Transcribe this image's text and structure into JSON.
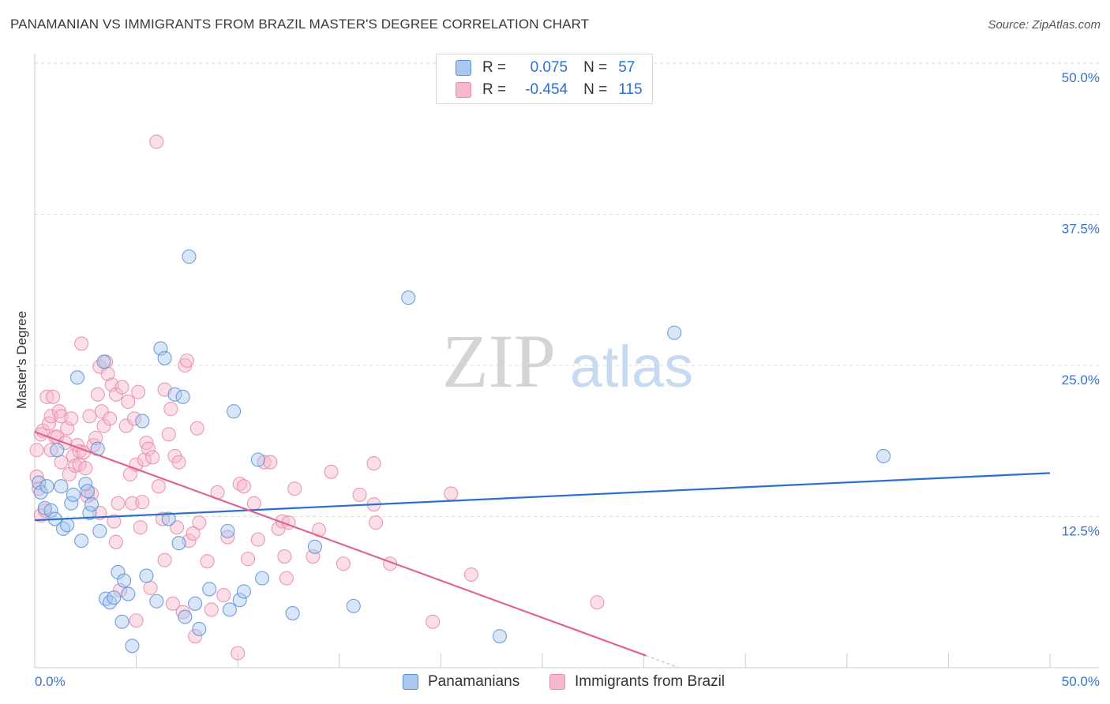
{
  "title": "PANAMANIAN VS IMMIGRANTS FROM BRAZIL MASTER'S DEGREE CORRELATION CHART",
  "source": "Source: ZipAtlas.com",
  "watermark": {
    "zip": "ZIP",
    "atlas": "atlas"
  },
  "legend": {
    "r_label": "R =",
    "n_label": "N =",
    "series": [
      {
        "name": "Panamanians",
        "r": "0.075",
        "n": "57"
      },
      {
        "name": "Immigrants from Brazil",
        "r": "-0.454",
        "n": "115"
      }
    ]
  },
  "colors": {
    "blue_fill": "#a9c8f0",
    "blue_stroke": "#5a8fd6",
    "blue_line": "#2a6fcf",
    "pink_fill": "#f6b9cc",
    "pink_stroke": "#e58aa8",
    "pink_line": "#e0628e",
    "axis_text": "#3a73cc",
    "grid": "#dddddd"
  },
  "chart_data": {
    "type": "scatter",
    "title": "PANAMANIAN VS IMMIGRANTS FROM BRAZIL MASTER'S DEGREE CORRELATION CHART",
    "xlabel": "",
    "ylabel": "Master's Degree",
    "xlim": [
      0,
      50
    ],
    "ylim": [
      0,
      50
    ],
    "x_tick_labels": [
      "0.0%",
      "50.0%"
    ],
    "y_ticks": [
      {
        "value": 50,
        "label": "50.0%"
      },
      {
        "value": 37.5,
        "label": "37.5%"
      },
      {
        "value": 25,
        "label": "25.0%"
      },
      {
        "value": 12.5,
        "label": "12.5%"
      }
    ],
    "series": [
      {
        "name": "Panamanians",
        "color": "blue",
        "trend": {
          "x0": 0,
          "y0": 12.2,
          "x1": 50,
          "y1": 16.1
        },
        "points": [
          [
            0.2,
            15.3
          ],
          [
            0.3,
            14.5
          ],
          [
            0.5,
            13.2
          ],
          [
            0.6,
            15.0
          ],
          [
            0.8,
            13.0
          ],
          [
            1.0,
            12.3
          ],
          [
            1.1,
            18.0
          ],
          [
            1.3,
            15.0
          ],
          [
            1.4,
            11.5
          ],
          [
            1.6,
            11.8
          ],
          [
            1.8,
            13.6
          ],
          [
            1.9,
            14.3
          ],
          [
            2.1,
            24.0
          ],
          [
            2.3,
            10.5
          ],
          [
            2.5,
            15.2
          ],
          [
            2.6,
            14.6
          ],
          [
            2.7,
            12.8
          ],
          [
            2.8,
            13.5
          ],
          [
            3.1,
            18.1
          ],
          [
            3.2,
            11.3
          ],
          [
            3.4,
            25.3
          ],
          [
            3.5,
            5.7
          ],
          [
            3.7,
            5.4
          ],
          [
            3.9,
            5.8
          ],
          [
            4.1,
            7.9
          ],
          [
            4.3,
            3.8
          ],
          [
            4.4,
            7.2
          ],
          [
            4.6,
            6.1
          ],
          [
            4.8,
            1.8
          ],
          [
            5.3,
            20.4
          ],
          [
            5.5,
            7.6
          ],
          [
            6.0,
            5.5
          ],
          [
            6.2,
            26.4
          ],
          [
            6.4,
            25.6
          ],
          [
            6.6,
            12.3
          ],
          [
            6.9,
            22.6
          ],
          [
            7.1,
            10.3
          ],
          [
            7.3,
            22.4
          ],
          [
            7.4,
            4.2
          ],
          [
            7.6,
            34.0
          ],
          [
            7.9,
            5.3
          ],
          [
            8.1,
            3.2
          ],
          [
            8.6,
            6.5
          ],
          [
            9.5,
            11.3
          ],
          [
            9.6,
            4.8
          ],
          [
            9.8,
            21.2
          ],
          [
            10.1,
            5.6
          ],
          [
            10.3,
            6.3
          ],
          [
            11.0,
            17.2
          ],
          [
            11.2,
            7.4
          ],
          [
            12.7,
            4.5
          ],
          [
            13.8,
            10.0
          ],
          [
            15.7,
            5.1
          ],
          [
            18.4,
            30.6
          ],
          [
            22.9,
            2.6
          ],
          [
            31.5,
            27.7
          ],
          [
            41.8,
            17.5
          ]
        ]
      },
      {
        "name": "Immigrants from Brazil",
        "color": "pink",
        "trend": {
          "x0": 0,
          "y0": 19.5,
          "x1": 30.1,
          "y1": 1.0,
          "dash_to_x": 31.7
        },
        "points": [
          [
            0.1,
            18.0
          ],
          [
            0.1,
            15.8
          ],
          [
            0.2,
            14.8
          ],
          [
            0.3,
            12.6
          ],
          [
            0.3,
            19.3
          ],
          [
            0.4,
            19.6
          ],
          [
            0.5,
            13.0
          ],
          [
            0.6,
            22.4
          ],
          [
            0.7,
            20.2
          ],
          [
            0.8,
            18.0
          ],
          [
            0.8,
            20.8
          ],
          [
            0.9,
            22.4
          ],
          [
            1.0,
            19.1
          ],
          [
            1.1,
            19.1
          ],
          [
            1.2,
            21.2
          ],
          [
            1.3,
            17.0
          ],
          [
            1.3,
            20.8
          ],
          [
            1.5,
            18.6
          ],
          [
            1.6,
            19.8
          ],
          [
            1.7,
            16.0
          ],
          [
            1.8,
            20.6
          ],
          [
            1.9,
            17.5
          ],
          [
            2.0,
            16.7
          ],
          [
            2.1,
            18.4
          ],
          [
            2.2,
            17.9
          ],
          [
            2.2,
            16.8
          ],
          [
            2.3,
            26.8
          ],
          [
            2.4,
            17.8
          ],
          [
            2.5,
            16.5
          ],
          [
            2.6,
            14.2
          ],
          [
            2.7,
            20.8
          ],
          [
            2.8,
            14.4
          ],
          [
            2.9,
            18.4
          ],
          [
            3.0,
            19.0
          ],
          [
            3.1,
            22.6
          ],
          [
            3.2,
            24.9
          ],
          [
            3.2,
            12.8
          ],
          [
            3.3,
            21.2
          ],
          [
            3.4,
            20.0
          ],
          [
            3.5,
            25.3
          ],
          [
            3.6,
            24.3
          ],
          [
            3.7,
            20.6
          ],
          [
            3.8,
            23.4
          ],
          [
            3.9,
            12.1
          ],
          [
            4.0,
            22.6
          ],
          [
            4.0,
            10.4
          ],
          [
            4.1,
            13.6
          ],
          [
            4.2,
            6.4
          ],
          [
            4.3,
            23.2
          ],
          [
            4.5,
            20.0
          ],
          [
            4.6,
            22.0
          ],
          [
            4.7,
            16.0
          ],
          [
            4.8,
            13.6
          ],
          [
            4.9,
            20.6
          ],
          [
            5.0,
            16.8
          ],
          [
            5.1,
            22.8
          ],
          [
            5.2,
            11.6
          ],
          [
            5.3,
            13.7
          ],
          [
            5.4,
            17.2
          ],
          [
            5.5,
            18.6
          ],
          [
            5.6,
            18.1
          ],
          [
            5.7,
            6.6
          ],
          [
            5.8,
            17.4
          ],
          [
            6.0,
            43.5
          ],
          [
            6.1,
            15.0
          ],
          [
            6.3,
            12.3
          ],
          [
            6.4,
            8.9
          ],
          [
            6.4,
            23.0
          ],
          [
            6.6,
            19.3
          ],
          [
            6.7,
            21.4
          ],
          [
            6.8,
            5.3
          ],
          [
            6.9,
            17.5
          ],
          [
            7.0,
            11.6
          ],
          [
            7.1,
            17.0
          ],
          [
            7.3,
            4.6
          ],
          [
            7.4,
            25.0
          ],
          [
            7.5,
            25.4
          ],
          [
            7.6,
            10.5
          ],
          [
            7.8,
            11.1
          ],
          [
            7.9,
            2.6
          ],
          [
            8.0,
            19.8
          ],
          [
            8.1,
            12.0
          ],
          [
            8.5,
            8.8
          ],
          [
            8.7,
            4.8
          ],
          [
            9.0,
            14.5
          ],
          [
            9.5,
            10.8
          ],
          [
            10.0,
            1.2
          ],
          [
            10.1,
            15.2
          ],
          [
            10.3,
            15.0
          ],
          [
            10.5,
            9.0
          ],
          [
            10.8,
            13.6
          ],
          [
            11.0,
            10.6
          ],
          [
            11.3,
            17.0
          ],
          [
            11.6,
            17.0
          ],
          [
            12.0,
            11.5
          ],
          [
            12.2,
            12.1
          ],
          [
            12.3,
            9.2
          ],
          [
            12.4,
            7.4
          ],
          [
            12.8,
            14.8
          ],
          [
            13.7,
            9.2
          ],
          [
            14.0,
            11.4
          ],
          [
            14.6,
            16.2
          ],
          [
            15.2,
            8.6
          ],
          [
            16.0,
            14.3
          ],
          [
            16.7,
            16.9
          ],
          [
            16.7,
            13.5
          ],
          [
            16.8,
            12.0
          ],
          [
            17.5,
            8.6
          ],
          [
            19.6,
            3.8
          ],
          [
            20.5,
            14.4
          ],
          [
            21.5,
            7.7
          ],
          [
            27.7,
            5.4
          ],
          [
            12.5,
            12.0
          ],
          [
            9.3,
            6.0
          ],
          [
            5.0,
            3.9
          ]
        ]
      }
    ]
  }
}
